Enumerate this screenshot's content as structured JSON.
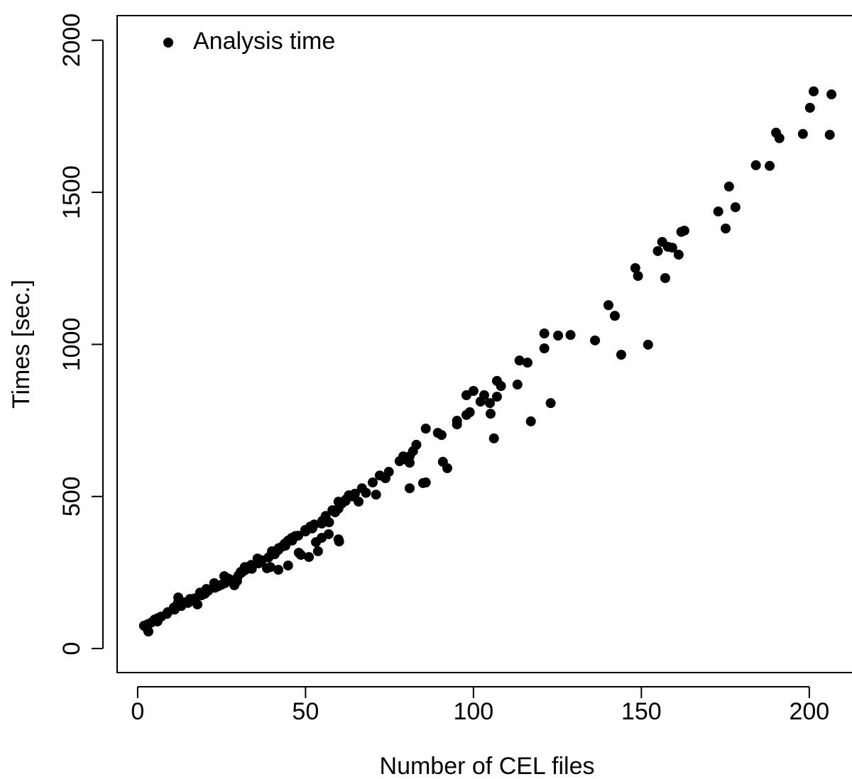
{
  "chart_data": {
    "type": "scatter",
    "x_label": "Number of CEL files",
    "y_label": "Times [sec.]",
    "xlim": [
      -6.1,
      214.2
    ],
    "ylim": [
      -79,
      2081
    ],
    "xticks": [
      0,
      50,
      100,
      150,
      200
    ],
    "yticks": [
      0,
      500,
      1000,
      1500,
      2000
    ],
    "legend": "top-left",
    "x": [
      206.6,
      201.3,
      200.2,
      206.1,
      198.1,
      190.1,
      191.1,
      188.2,
      184.1,
      176.1,
      178.0,
      172.9,
      175.1,
      162.8,
      161.9,
      156.2,
      154.9,
      157.9,
      159.2,
      161.1,
      157.1,
      148.2,
      149.0,
      140.2,
      142.1,
      144.0,
      152.0,
      136.2,
      128.9,
      125.2,
      121.1,
      121.1,
      123.0,
      117.1,
      113.7,
      116.1,
      113.1,
      107.0,
      108.2,
      107.0,
      104.9,
      102.1,
      103.2,
      100.0,
      97.9,
      98.9,
      97.9,
      105.1,
      106.1,
      95.1,
      95.1,
      85.8,
      89.4,
      90.5,
      90.9,
      92.2,
      85.8,
      85.0,
      81.0,
      83.0,
      82.0,
      81.0,
      79.1,
      78.0,
      80.0,
      81.0,
      74.8,
      73.8,
      72.1,
      71.0,
      70.0,
      66.8,
      65.8,
      64.7,
      62.9,
      61.9,
      59.8,
      60.7,
      59.8,
      58.8,
      59.8,
      60.0,
      56.0,
      54.8,
      52.6,
      56.9,
      54.8,
      53.7,
      53.1,
      51.4,
      49.9,
      47.8,
      45.9,
      44.8,
      43.8,
      41.9,
      40.8,
      48.6,
      51.0,
      48.0,
      44.8,
      41.9,
      39.5,
      38.5,
      35.7,
      36.8,
      33.8,
      31.9,
      30.7,
      29.6,
      28.8,
      26.8,
      25.8,
      22.8,
      20.5,
      18.6,
      17.8,
      15.6,
      12.1,
      10.8,
      8.7,
      5.9,
      2.7,
      1.9,
      3.2,
      12,
      14,
      16,
      19,
      21,
      23,
      25,
      27,
      30,
      32,
      34,
      37,
      39,
      42,
      44,
      46,
      50,
      52,
      7,
      9,
      11,
      13,
      15,
      17,
      20,
      24,
      26,
      28,
      31,
      36,
      40,
      43,
      47,
      55,
      57,
      58,
      62,
      64,
      68,
      5,
      6,
      4,
      3
    ],
    "series": [
      {
        "name": "Analysis time",
        "color": "#000000",
        "values": [
          1822,
          1832,
          1778,
          1689,
          1692,
          1696,
          1678,
          1587,
          1589,
          1519,
          1451,
          1437,
          1381,
          1374,
          1370,
          1337,
          1307,
          1321,
          1318,
          1295,
          1218,
          1251,
          1225,
          1129,
          1094,
          966,
          999,
          1013,
          1031,
          1029,
          1036,
          987,
          807,
          747,
          947,
          940,
          868,
          880,
          863,
          828,
          807,
          812,
          833,
          847,
          833,
          777,
          768,
          772,
          691,
          749,
          737,
          723,
          709,
          702,
          614,
          593,
          546,
          544,
          527,
          670,
          649,
          632,
          632,
          616,
          621,
          611,
          581,
          560,
          569,
          506,
          546,
          527,
          483,
          509,
          504,
          485,
          483,
          476,
          460,
          448,
          359,
          352,
          436,
          411,
          408,
          376,
          364,
          320,
          350,
          401,
          390,
          371,
          364,
          355,
          345,
          324,
          310,
          308,
          301,
          315,
          273,
          259,
          268,
          264,
          296,
          285,
          275,
          268,
          252,
          222,
          208,
          224,
          238,
          215,
          196,
          184,
          145,
          163,
          168,
          135,
          114,
          89,
          68,
          75,
          56,
          150,
          152,
          160,
          175,
          190,
          200,
          210,
          230,
          240,
          258,
          262,
          290,
          300,
          330,
          338,
          355,
          385,
          395,
          105,
          120,
          128,
          140,
          150,
          165,
          180,
          205,
          215,
          225,
          250,
          280,
          320,
          335,
          370,
          420,
          415,
          455,
          490,
          500,
          512,
          95,
          100,
          85,
          80
        ]
      }
    ]
  }
}
